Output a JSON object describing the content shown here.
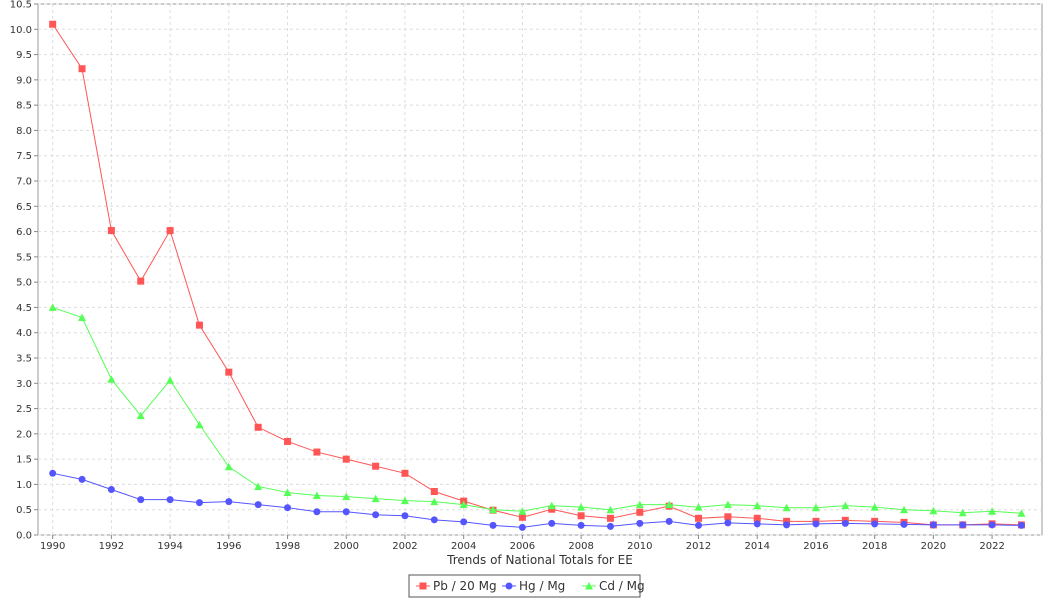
{
  "chart_data": {
    "type": "line",
    "title": "",
    "xlabel": "Trends of National Totals for EE",
    "ylabel": "",
    "x": [
      1990,
      1991,
      1992,
      1993,
      1994,
      1995,
      1996,
      1997,
      1998,
      1999,
      2000,
      2001,
      2002,
      2003,
      2004,
      2005,
      2006,
      2007,
      2008,
      2009,
      2010,
      2011,
      2012,
      2013,
      2014,
      2015,
      2016,
      2017,
      2018,
      2019,
      2020,
      2021,
      2022,
      2023
    ],
    "xlim": [
      1989.5,
      2023.7
    ],
    "ylim": [
      0,
      10.5
    ],
    "x_ticks": [
      "1990",
      "1992",
      "1994",
      "1996",
      "1998",
      "2000",
      "2002",
      "2004",
      "2006",
      "2008",
      "2010",
      "2012",
      "2014",
      "2016",
      "2018",
      "2020",
      "2022"
    ],
    "y_ticks": [
      "0.0",
      "0.5",
      "1.0",
      "1.5",
      "2.0",
      "2.5",
      "3.0",
      "3.5",
      "4.0",
      "4.5",
      "5.0",
      "5.5",
      "6.0",
      "6.5",
      "7.0",
      "7.5",
      "8.0",
      "8.5",
      "9.0",
      "9.5",
      "10.0",
      "10.5"
    ],
    "grid": true,
    "legend_position": "bottom-center",
    "series": [
      {
        "name": "Pb / 20 Mg",
        "color": "#ff5555",
        "marker": "square",
        "values": [
          10.1,
          9.22,
          6.02,
          5.02,
          6.02,
          4.15,
          3.22,
          2.13,
          1.85,
          1.64,
          1.5,
          1.36,
          1.22,
          0.86,
          0.67,
          0.49,
          0.35,
          0.51,
          0.38,
          0.33,
          0.45,
          0.57,
          0.33,
          0.36,
          0.33,
          0.27,
          0.27,
          0.29,
          0.27,
          0.25,
          0.2,
          0.2,
          0.22,
          0.2
        ]
      },
      {
        "name": "Hg / Mg",
        "color": "#5555ff",
        "marker": "circle",
        "values": [
          1.22,
          1.1,
          0.9,
          0.7,
          0.7,
          0.64,
          0.66,
          0.6,
          0.54,
          0.46,
          0.46,
          0.4,
          0.38,
          0.3,
          0.26,
          0.19,
          0.15,
          0.23,
          0.19,
          0.17,
          0.23,
          0.27,
          0.19,
          0.24,
          0.22,
          0.2,
          0.22,
          0.23,
          0.22,
          0.21,
          0.2,
          0.2,
          0.2,
          0.19
        ]
      },
      {
        "name": "Cd / Mg",
        "color": "#55ff55",
        "marker": "triangle",
        "values": [
          4.5,
          4.3,
          3.08,
          2.36,
          3.06,
          2.18,
          1.35,
          0.96,
          0.84,
          0.78,
          0.76,
          0.72,
          0.68,
          0.66,
          0.6,
          0.5,
          0.47,
          0.58,
          0.55,
          0.5,
          0.6,
          0.6,
          0.55,
          0.6,
          0.58,
          0.54,
          0.54,
          0.58,
          0.55,
          0.5,
          0.48,
          0.44,
          0.47,
          0.43
        ]
      }
    ]
  }
}
